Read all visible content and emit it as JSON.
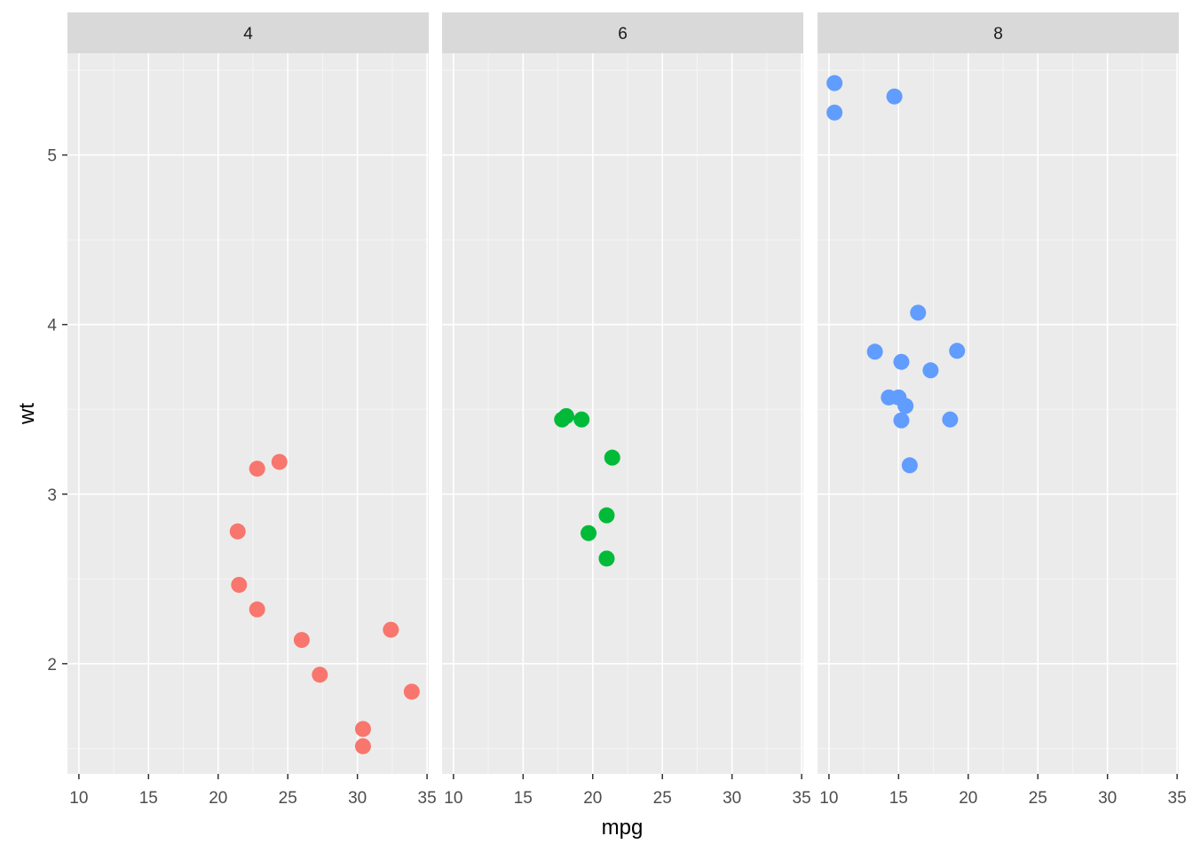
{
  "chart_data": {
    "type": "scatter",
    "facet_by": "cyl",
    "xlabel": "mpg",
    "ylabel": "wt",
    "xlim": [
      9.18,
      35.12
    ],
    "ylim": [
      1.35,
      5.6
    ],
    "x_ticks": [
      10,
      15,
      20,
      25,
      30,
      35
    ],
    "y_ticks": [
      2,
      3,
      4,
      5
    ],
    "panels": [
      {
        "label": "4",
        "color": "#F8766D",
        "points": [
          {
            "x": 22.8,
            "y": 2.32
          },
          {
            "x": 24.4,
            "y": 3.19
          },
          {
            "x": 22.8,
            "y": 3.15
          },
          {
            "x": 32.4,
            "y": 2.2
          },
          {
            "x": 30.4,
            "y": 1.615
          },
          {
            "x": 33.9,
            "y": 1.835
          },
          {
            "x": 21.5,
            "y": 2.465
          },
          {
            "x": 27.3,
            "y": 1.935
          },
          {
            "x": 26.0,
            "y": 2.14
          },
          {
            "x": 30.4,
            "y": 1.513
          },
          {
            "x": 21.4,
            "y": 2.78
          }
        ]
      },
      {
        "label": "6",
        "color": "#00BA38",
        "points": [
          {
            "x": 21.0,
            "y": 2.62
          },
          {
            "x": 21.0,
            "y": 2.875
          },
          {
            "x": 21.4,
            "y": 3.215
          },
          {
            "x": 18.1,
            "y": 3.46
          },
          {
            "x": 19.2,
            "y": 3.44
          },
          {
            "x": 17.8,
            "y": 3.44
          },
          {
            "x": 19.7,
            "y": 2.77
          }
        ]
      },
      {
        "label": "8",
        "color": "#619CFF",
        "points": [
          {
            "x": 18.7,
            "y": 3.44
          },
          {
            "x": 14.3,
            "y": 3.57
          },
          {
            "x": 16.4,
            "y": 4.07
          },
          {
            "x": 17.3,
            "y": 3.73
          },
          {
            "x": 15.2,
            "y": 3.78
          },
          {
            "x": 10.4,
            "y": 5.25
          },
          {
            "x": 10.4,
            "y": 5.424
          },
          {
            "x": 14.7,
            "y": 5.345
          },
          {
            "x": 15.5,
            "y": 3.52
          },
          {
            "x": 15.2,
            "y": 3.435
          },
          {
            "x": 13.3,
            "y": 3.84
          },
          {
            "x": 19.2,
            "y": 3.845
          },
          {
            "x": 15.8,
            "y": 3.17
          },
          {
            "x": 15.0,
            "y": 3.57
          }
        ]
      }
    ]
  }
}
